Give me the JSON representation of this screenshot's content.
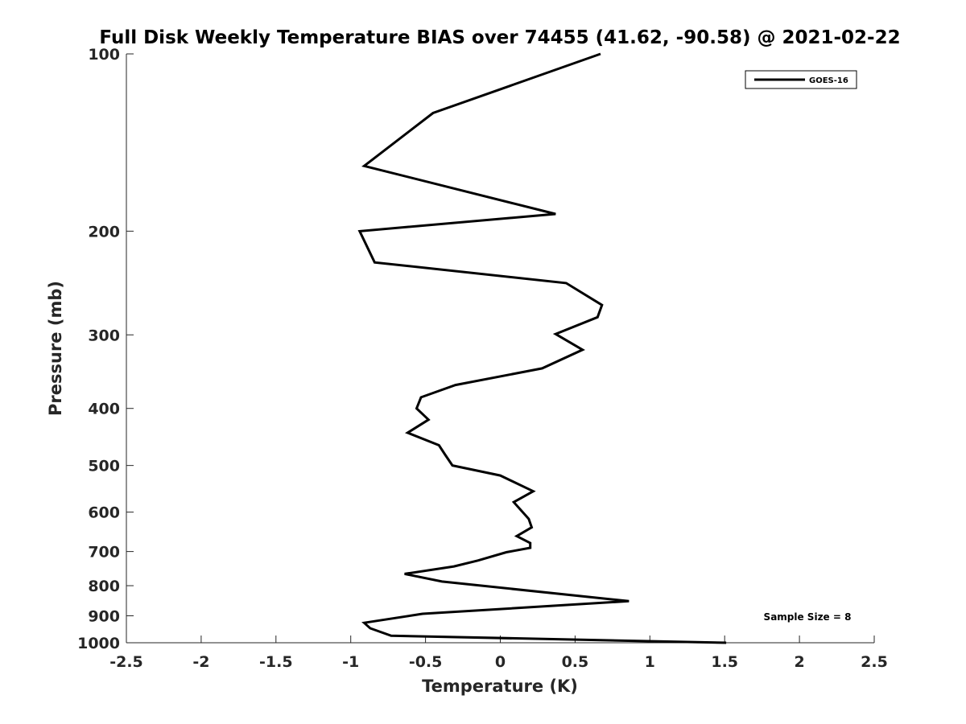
{
  "chart_data": {
    "type": "line",
    "title": "Full Disk Weekly Temperature BIAS over 74455 (41.62, -90.58) @ 2021-02-22",
    "xlabel": "Temperature (K)",
    "ylabel": "Pressure (mb)",
    "xlim": [
      -2.5,
      2.5
    ],
    "ylim": [
      100,
      1000
    ],
    "y_scale": "log",
    "y_reversed": true,
    "grid": false,
    "x_ticks": [
      -2.5,
      -2,
      -1.5,
      -1,
      -0.5,
      0,
      0.5,
      1,
      1.5,
      2,
      2.5
    ],
    "x_tick_labels": [
      "-2.5",
      "-2",
      "-1.5",
      "-1",
      "-0.5",
      "0",
      "0.5",
      "1",
      "1.5",
      "2",
      "2.5"
    ],
    "y_ticks": [
      100,
      200,
      300,
      400,
      500,
      600,
      700,
      800,
      900,
      1000
    ],
    "y_tick_labels": [
      "100",
      "200",
      "300",
      "400",
      "500",
      "600",
      "700",
      "800",
      "900",
      "1000"
    ],
    "legend": {
      "position": "top-right",
      "entries": [
        "GOES-16"
      ]
    },
    "annotation": "Sample Size = 8",
    "series": [
      {
        "name": "GOES-16",
        "color": "#000000",
        "points": [
          {
            "x": 0.67,
            "y": 100
          },
          {
            "x": -0.45,
            "y": 126
          },
          {
            "x": -0.91,
            "y": 155
          },
          {
            "x": 0.37,
            "y": 187
          },
          {
            "x": -0.94,
            "y": 200
          },
          {
            "x": -0.84,
            "y": 226
          },
          {
            "x": 0.44,
            "y": 245
          },
          {
            "x": 0.68,
            "y": 267
          },
          {
            "x": 0.65,
            "y": 280
          },
          {
            "x": 0.37,
            "y": 299
          },
          {
            "x": 0.55,
            "y": 318
          },
          {
            "x": 0.28,
            "y": 342
          },
          {
            "x": -0.3,
            "y": 365
          },
          {
            "x": -0.53,
            "y": 383
          },
          {
            "x": -0.56,
            "y": 400
          },
          {
            "x": -0.48,
            "y": 418
          },
          {
            "x": -0.62,
            "y": 440
          },
          {
            "x": -0.41,
            "y": 462
          },
          {
            "x": -0.37,
            "y": 479
          },
          {
            "x": -0.32,
            "y": 500
          },
          {
            "x": 0.0,
            "y": 520
          },
          {
            "x": 0.22,
            "y": 553
          },
          {
            "x": 0.09,
            "y": 577
          },
          {
            "x": 0.19,
            "y": 616
          },
          {
            "x": 0.21,
            "y": 637
          },
          {
            "x": 0.11,
            "y": 659
          },
          {
            "x": 0.2,
            "y": 677
          },
          {
            "x": 0.2,
            "y": 690
          },
          {
            "x": 0.04,
            "y": 702
          },
          {
            "x": -0.15,
            "y": 725
          },
          {
            "x": -0.31,
            "y": 742
          },
          {
            "x": -0.64,
            "y": 764
          },
          {
            "x": -0.39,
            "y": 787
          },
          {
            "x": 0.86,
            "y": 850
          },
          {
            "x": -0.52,
            "y": 893
          },
          {
            "x": -0.91,
            "y": 925
          },
          {
            "x": -0.87,
            "y": 945
          },
          {
            "x": -0.73,
            "y": 973
          },
          {
            "x": 1.51,
            "y": 1000
          }
        ]
      }
    ]
  }
}
